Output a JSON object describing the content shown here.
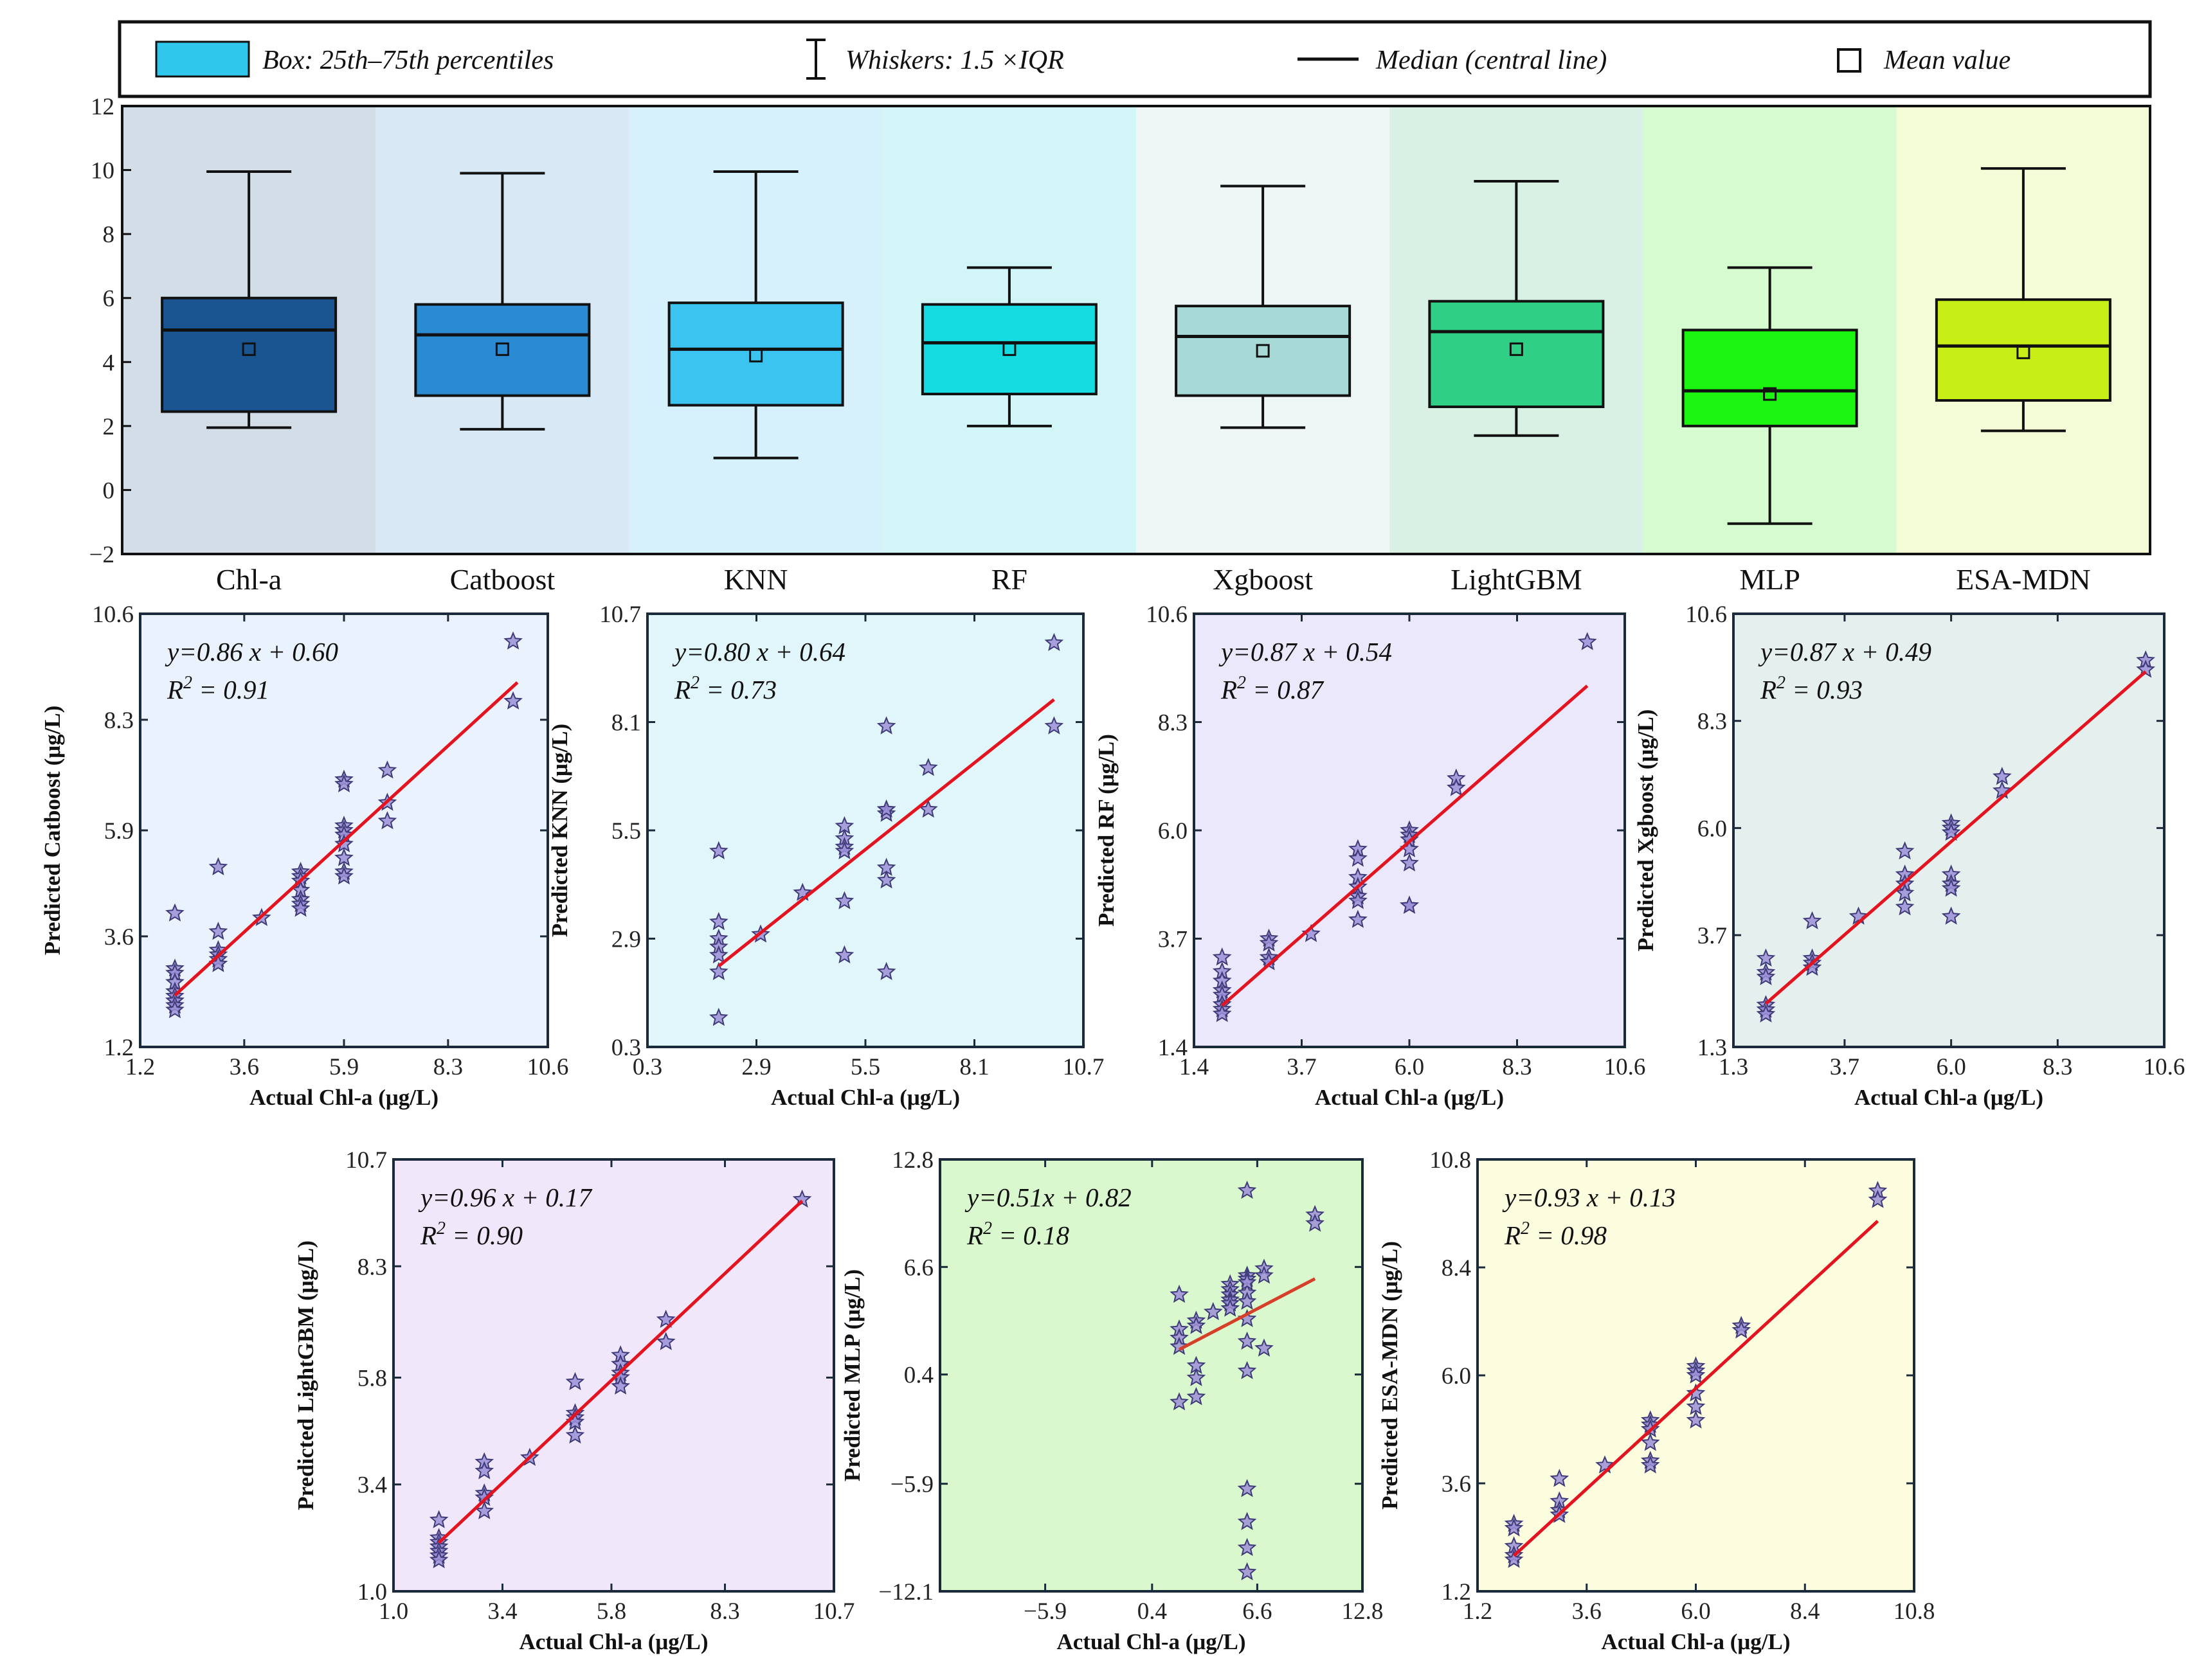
{
  "legend": {
    "box": "Box: 25th–75th percentiles",
    "whisker": "Whiskers: 1.5 ×IQR",
    "median": "Median (central line)",
    "mean": "Mean value"
  },
  "colors": {
    "point_fill": "#9b8fd6",
    "point_stroke": "#3f3a78",
    "fit_line": "#e3141f",
    "fit_line_mlp": "#d6402a",
    "frame": "#1b2a3a"
  },
  "chart_data": [
    {
      "type": "box",
      "ylim": [
        -2,
        12
      ],
      "yticks": [
        -2,
        0,
        2,
        4,
        6,
        8,
        10,
        12
      ],
      "ytick_labels": [
        "−2",
        "0",
        "2",
        "4",
        "6",
        "8",
        "10",
        "12"
      ],
      "categories": [
        "Chl-a",
        "Catboost",
        "KNN",
        "RF",
        "Xgboost",
        "LightGBM",
        "MLP",
        "ESA-MDN"
      ],
      "boxes": [
        {
          "name": "Chl-a",
          "whislo": 1.95,
          "q1": 2.45,
          "med": 5.0,
          "q3": 6.0,
          "whishi": 9.95,
          "mean": 4.4,
          "color": "#1a5592",
          "bg": "#d3dde8"
        },
        {
          "name": "Catboost",
          "whislo": 1.9,
          "q1": 2.95,
          "med": 4.85,
          "q3": 5.8,
          "whishi": 9.9,
          "mean": 4.4,
          "color": "#2a8ad2",
          "bg": "#d8e8f5"
        },
        {
          "name": "KNN",
          "whislo": 1.0,
          "q1": 2.65,
          "med": 4.4,
          "q3": 5.85,
          "whishi": 9.95,
          "mean": 4.2,
          "color": "#3ac4ef",
          "bg": "#d6f1fb"
        },
        {
          "name": "RF",
          "whislo": 2.0,
          "q1": 3.0,
          "med": 4.6,
          "q3": 5.8,
          "whishi": 6.95,
          "mean": 4.4,
          "color": "#14dce0",
          "bg": "#d2f6f7"
        },
        {
          "name": "Xgboost",
          "whislo": 1.95,
          "q1": 2.95,
          "med": 4.8,
          "q3": 5.75,
          "whishi": 9.5,
          "mean": 4.35,
          "color": "#a7dad6",
          "bg": "#eef7f6"
        },
        {
          "name": "LightGBM",
          "whislo": 1.7,
          "q1": 2.6,
          "med": 4.95,
          "q3": 5.9,
          "whishi": 9.65,
          "mean": 4.4,
          "color": "#2fcf86",
          "bg": "#d9f1e5"
        },
        {
          "name": "MLP",
          "whislo": -1.05,
          "q1": 2.0,
          "med": 3.1,
          "q3": 5.0,
          "whishi": 6.95,
          "mean": 3.0,
          "color": "#1cf510",
          "bg": "#d7fbd0"
        },
        {
          "name": "ESA-MDN",
          "whislo": 1.85,
          "q1": 2.8,
          "med": 4.5,
          "q3": 5.95,
          "whishi": 10.05,
          "mean": 4.3,
          "color": "#c7ee16",
          "bg": "#f3fcd6"
        }
      ]
    },
    {
      "type": "scatter",
      "title": "Catboost",
      "equation": "y=0.86 x + 0.60",
      "r2": "R 2 = 0.91",
      "r2_label": "R",
      "r2_sup": "2",
      "r2_value": "= 0.91",
      "xlabel": "Actual Chl-a (μg/L)",
      "ylabel": "Predicted Catboost (μg/L)",
      "xlim": [
        1.2,
        10.6
      ],
      "ylim": [
        1.2,
        10.6
      ],
      "xticks": [
        1.2,
        3.6,
        5.9,
        8.3,
        10.6
      ],
      "yticks": [
        1.2,
        3.6,
        5.9,
        8.3,
        10.6
      ],
      "xtick_labels": [
        "1.2",
        "3.6",
        "5.9",
        "8.3",
        "10.6"
      ],
      "ytick_labels": [
        "1.2",
        "3.6",
        "5.9",
        "8.3",
        "10.6"
      ],
      "bg": "#eaf3fd",
      "fit": {
        "x": [
          2.0,
          9.9
        ],
        "y": [
          2.32,
          9.11
        ]
      },
      "x": [
        2.0,
        2.0,
        2.0,
        2.0,
        2.0,
        2.0,
        2.0,
        2.0,
        2.0,
        2.0,
        3.0,
        3.0,
        3.0,
        3.0,
        3.0,
        3.0,
        4.0,
        4.9,
        4.9,
        4.9,
        4.9,
        4.9,
        4.9,
        4.9,
        5.9,
        5.9,
        5.9,
        5.9,
        5.9,
        5.9,
        5.9,
        5.9,
        5.9,
        6.9,
        6.9,
        6.9,
        9.8,
        9.8
      ],
      "y": [
        4.1,
        2.9,
        2.8,
        2.6,
        2.4,
        2.3,
        2.2,
        2.2,
        2.1,
        2.0,
        5.1,
        3.7,
        3.3,
        3.2,
        3.1,
        3.0,
        4.0,
        5.0,
        4.9,
        4.8,
        4.6,
        4.4,
        4.3,
        4.2,
        7.0,
        6.9,
        6.0,
        5.9,
        5.8,
        5.6,
        5.3,
        5.0,
        4.9,
        7.2,
        6.5,
        6.1,
        10.0,
        8.7
      ]
    },
    {
      "type": "scatter",
      "title": "KNN",
      "equation": "y=0.80 x + 0.64",
      "r2_label": "R",
      "r2_sup": "2",
      "r2_value": "= 0.73",
      "xlabel": "Actual Chl-a (μg/L)",
      "ylabel": "Predicted KNN (μg/L)",
      "xlim": [
        0.3,
        10.7
      ],
      "ylim": [
        0.3,
        10.7
      ],
      "xticks": [
        0.3,
        2.9,
        5.5,
        8.1,
        10.7
      ],
      "yticks": [
        0.3,
        2.9,
        5.5,
        8.1,
        10.7
      ],
      "xtick_labels": [
        "0.3",
        "2.9",
        "5.5",
        "8.1",
        "10.7"
      ],
      "ytick_labels": [
        "0.3",
        "2.9",
        "5.5",
        "8.1",
        "10.7"
      ],
      "bg": "#e1f6fb",
      "fit": {
        "x": [
          2.0,
          10.0
        ],
        "y": [
          2.24,
          8.64
        ]
      },
      "x": [
        2.0,
        2.0,
        2.0,
        2.0,
        2.0,
        2.0,
        2.0,
        3.0,
        4.0,
        5.0,
        5.0,
        5.0,
        5.0,
        5.0,
        5.0,
        6.0,
        6.0,
        6.0,
        6.0,
        6.0,
        6.0,
        6.0,
        7.0,
        7.0,
        10.0,
        10.0
      ],
      "y": [
        5.0,
        3.3,
        2.9,
        2.7,
        2.5,
        2.1,
        1.0,
        3.0,
        4.0,
        5.6,
        5.3,
        5.1,
        5.0,
        3.8,
        2.5,
        8.0,
        6.0,
        5.9,
        4.6,
        4.3,
        2.1,
        6.0,
        7.0,
        6.0,
        10.0,
        8.0
      ]
    },
    {
      "type": "scatter",
      "title": "RF",
      "equation": "y=0.87 x + 0.54",
      "r2_label": "R",
      "r2_sup": "2",
      "r2_value": "= 0.87",
      "xlabel": "Actual Chl-a (μg/L)",
      "ylabel": "Predicted RF (μg/L)",
      "xlim": [
        1.4,
        10.6
      ],
      "ylim": [
        1.4,
        10.6
      ],
      "xticks": [
        1.4,
        3.7,
        6.0,
        8.3,
        10.6
      ],
      "yticks": [
        1.4,
        3.7,
        6.0,
        8.3,
        10.6
      ],
      "xtick_labels": [
        "1.4",
        "3.7",
        "6.0",
        "8.3",
        "10.6"
      ],
      "ytick_labels": [
        "1.4",
        "3.7",
        "6.0",
        "8.3",
        "10.6"
      ],
      "bg": "#ece8fb",
      "fit": {
        "x": [
          2.0,
          9.8
        ],
        "y": [
          2.28,
          9.07
        ]
      },
      "x": [
        2.0,
        2.0,
        2.0,
        2.0,
        2.0,
        2.0,
        2.0,
        2.0,
        3.0,
        3.0,
        3.0,
        3.0,
        3.9,
        4.9,
        4.9,
        4.9,
        4.9,
        4.9,
        4.9,
        4.9,
        6.0,
        6.0,
        6.0,
        6.0,
        6.0,
        6.0,
        6.0,
        7.0,
        7.0,
        9.8
      ],
      "y": [
        3.3,
        3.0,
        2.8,
        2.6,
        2.5,
        2.3,
        2.2,
        2.1,
        3.7,
        3.6,
        3.3,
        3.2,
        3.8,
        5.6,
        5.4,
        5.0,
        4.8,
        4.6,
        4.5,
        4.1,
        6.0,
        5.9,
        5.8,
        5.6,
        5.3,
        4.4,
        4.4,
        7.1,
        6.9,
        10.0
      ]
    },
    {
      "type": "scatter",
      "title": "Xgboost",
      "equation": "y=0.87 x + 0.49",
      "r2_label": "R",
      "r2_sup": "2",
      "r2_value": "= 0.93",
      "xlabel": "Actual Chl-a (μg/L)",
      "ylabel": "Predicted Xgboost (μg/L)",
      "xlim": [
        1.3,
        10.6
      ],
      "ylim": [
        1.3,
        10.6
      ],
      "xticks": [
        1.3,
        3.7,
        6.0,
        8.3,
        10.6
      ],
      "yticks": [
        1.3,
        3.7,
        6.0,
        8.3,
        10.6
      ],
      "xtick_labels": [
        "1.3",
        "3.7",
        "6.0",
        "8.3",
        "10.6"
      ],
      "ytick_labels": [
        "1.3",
        "3.7",
        "6.0",
        "8.3",
        "10.6"
      ],
      "bg": "#e5efed",
      "fit": {
        "x": [
          2.0,
          10.2
        ],
        "y": [
          2.23,
          9.36
        ]
      },
      "x": [
        2.0,
        2.0,
        2.0,
        2.0,
        2.0,
        2.0,
        3.0,
        3.0,
        3.0,
        3.0,
        4.0,
        5.0,
        5.0,
        5.0,
        5.0,
        5.0,
        6.0,
        6.0,
        6.0,
        6.0,
        6.0,
        6.0,
        6.0,
        7.1,
        7.1,
        10.2,
        10.2
      ],
      "y": [
        3.2,
        2.9,
        2.8,
        2.2,
        2.1,
        2.0,
        4.0,
        3.2,
        3.1,
        3.0,
        4.1,
        5.5,
        5.0,
        4.8,
        4.6,
        4.3,
        6.1,
        6.0,
        5.9,
        5.0,
        4.8,
        4.7,
        4.1,
        7.1,
        6.8,
        9.6,
        9.4
      ]
    },
    {
      "type": "scatter",
      "title": "LightGBM",
      "equation": "y=0.96 x + 0.17",
      "r2_label": "R",
      "r2_sup": "2",
      "r2_value": "= 0.90",
      "xlabel": "Actual Chl-a (μg/L)",
      "ylabel": "Predicted LightGBM (μg/L)",
      "xlim": [
        1.0,
        10.7
      ],
      "ylim": [
        1.0,
        10.7
      ],
      "xticks": [
        1.0,
        3.4,
        5.8,
        8.3,
        10.7
      ],
      "yticks": [
        1.0,
        3.4,
        5.8,
        8.3,
        10.7
      ],
      "xtick_labels": [
        "1.0",
        "3.4",
        "5.8",
        "8.3",
        "10.7"
      ],
      "ytick_labels": [
        "1.0",
        "3.4",
        "5.8",
        "8.3",
        "10.7"
      ],
      "bg": "#f0e8fa",
      "fit": {
        "x": [
          2.0,
          10.0
        ],
        "y": [
          2.09,
          9.77
        ]
      },
      "x": [
        2.0,
        2.0,
        2.0,
        2.0,
        2.0,
        2.0,
        2.0,
        3.0,
        3.0,
        3.0,
        3.0,
        3.0,
        4.0,
        5.0,
        5.0,
        5.0,
        5.0,
        5.0,
        6.0,
        6.0,
        6.0,
        6.0,
        6.0,
        7.0,
        7.0,
        10.0
      ],
      "y": [
        2.6,
        2.2,
        2.1,
        2.0,
        1.9,
        1.8,
        1.7,
        3.9,
        3.7,
        3.2,
        3.1,
        2.8,
        4.0,
        5.7,
        5.0,
        4.9,
        4.8,
        4.5,
        6.3,
        6.1,
        5.9,
        5.8,
        5.6,
        7.1,
        6.6,
        9.8
      ]
    },
    {
      "type": "scatter",
      "title": "MLP",
      "equation": "y=0.51x + 0.82",
      "r2_label": "R",
      "r2_sup": "2",
      "r2_value": "= 0.18",
      "xlabel": "Actual Chl-a (μg/L)",
      "ylabel": "Predicted MLP (μg/L)",
      "xlim": [
        -12.1,
        12.8
      ],
      "ylim": [
        -12.1,
        12.8
      ],
      "xticks": [
        -5.9,
        0.4,
        6.6,
        12.8
      ],
      "yticks": [
        -12.1,
        -5.9,
        0.4,
        6.6,
        12.8
      ],
      "xtick_labels": [
        "−5.9",
        "0.4",
        "6.6",
        "12.8"
      ],
      "ytick_labels": [
        "−12.1",
        "−5.9",
        "0.4",
        "6.6",
        "12.8"
      ],
      "bg": "#d9f8cd",
      "fit": {
        "x": [
          2.0,
          10.0
        ],
        "y": [
          1.84,
          5.92
        ]
      },
      "x": [
        2.0,
        2.0,
        2.0,
        2.0,
        2.0,
        3.0,
        3.0,
        3.0,
        3.0,
        3.0,
        4.0,
        5.0,
        5.0,
        5.0,
        5.0,
        5.0,
        5.0,
        6.0,
        6.0,
        6.0,
        6.0,
        6.0,
        6.0,
        6.0,
        6.0,
        6.0,
        6.0,
        6.0,
        6.0,
        6.0,
        7.0,
        7.0,
        7.0,
        10.0,
        10.0
      ],
      "y": [
        5.0,
        3.0,
        2.5,
        2.0,
        -1.2,
        3.5,
        3.2,
        0.9,
        0.2,
        -0.9,
        4.0,
        5.6,
        5.3,
        5.0,
        4.7,
        4.5,
        4.2,
        11.0,
        6.1,
        5.9,
        5.1,
        4.6,
        3.6,
        2.3,
        0.6,
        -6.2,
        -8.1,
        -9.6,
        -11.0,
        5.7,
        6.5,
        6.1,
        1.9,
        9.6,
        9.1
      ]
    },
    {
      "type": "scatter",
      "title": "ESA-MDN",
      "equation": "y=0.93 x + 0.13",
      "r2_label": "R",
      "r2_sup": "2",
      "r2_value": "= 0.98",
      "xlabel": "Actual Chl-a (μg/L)",
      "ylabel": "Predicted ESA-MDN (μg/L)",
      "xlim": [
        1.2,
        10.8
      ],
      "ylim": [
        1.2,
        10.8
      ],
      "xticks": [
        1.2,
        3.6,
        6.0,
        8.4,
        10.8
      ],
      "yticks": [
        1.2,
        3.6,
        6.0,
        8.4,
        10.8
      ],
      "xtick_labels": [
        "1.2",
        "3.6",
        "6.0",
        "8.4",
        "10.8"
      ],
      "ytick_labels": [
        "1.2",
        "3.6",
        "6.0",
        "8.4",
        "10.8"
      ],
      "bg": "#fcfcdf",
      "fit": {
        "x": [
          2.0,
          10.0
        ],
        "y": [
          1.99,
          9.43
        ]
      },
      "x": [
        2.0,
        2.0,
        2.0,
        2.0,
        2.0,
        3.0,
        3.0,
        3.0,
        3.0,
        4.0,
        5.0,
        5.0,
        5.0,
        5.0,
        5.0,
        5.0,
        6.0,
        6.0,
        6.0,
        6.0,
        6.0,
        6.0,
        7.0,
        7.0,
        10.0,
        10.0
      ],
      "y": [
        2.7,
        2.6,
        2.2,
        2.0,
        1.9,
        3.7,
        3.2,
        3.0,
        2.9,
        4.0,
        5.0,
        4.9,
        4.8,
        4.5,
        4.1,
        4.0,
        6.2,
        6.1,
        6.0,
        5.6,
        5.3,
        5.0,
        7.1,
        7.0,
        10.1,
        9.9
      ]
    }
  ]
}
